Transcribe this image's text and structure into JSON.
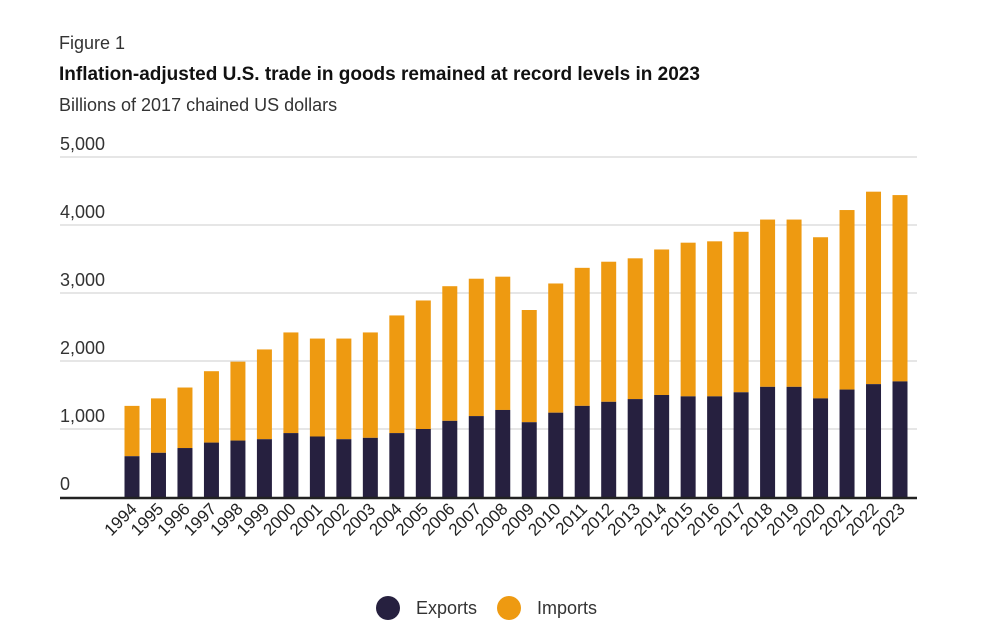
{
  "figure_label": "Figure 1",
  "title": "Inflation-adjusted U.S. trade in goods remained at record levels in 2023",
  "subtitle": "Billions of 2017 chained US dollars",
  "colors": {
    "exports": "#26203f",
    "imports": "#ee9a11",
    "grid": "#cccccc",
    "axis": "#222222"
  },
  "legend": [
    {
      "label": "Exports",
      "color": "#26203f"
    },
    {
      "label": "Imports",
      "color": "#ee9a11"
    }
  ],
  "chart_data": {
    "type": "bar",
    "stacked": true,
    "categories": [
      "1994",
      "1995",
      "1996",
      "1997",
      "1998",
      "1999",
      "2000",
      "2001",
      "2002",
      "2003",
      "2004",
      "2005",
      "2006",
      "2007",
      "2008",
      "2009",
      "2010",
      "2011",
      "2012",
      "2013",
      "2014",
      "2015",
      "2016",
      "2017",
      "2018",
      "2019",
      "2020",
      "2021",
      "2022",
      "2023"
    ],
    "series": [
      {
        "name": "Exports",
        "values": [
          600,
          650,
          720,
          800,
          830,
          850,
          940,
          890,
          850,
          870,
          940,
          1000,
          1120,
          1190,
          1280,
          1100,
          1240,
          1340,
          1400,
          1440,
          1500,
          1480,
          1480,
          1540,
          1620,
          1620,
          1450,
          1580,
          1660,
          1700
        ]
      },
      {
        "name": "Imports",
        "values": [
          740,
          800,
          890,
          1050,
          1160,
          1320,
          1480,
          1440,
          1480,
          1550,
          1730,
          1890,
          1980,
          2020,
          1960,
          1650,
          1900,
          2030,
          2060,
          2070,
          2140,
          2260,
          2280,
          2360,
          2460,
          2460,
          2370,
          2640,
          2830,
          2740
        ]
      }
    ],
    "y_ticks": [
      "5,000",
      "4,000",
      "3,000",
      "2,000",
      "1,000",
      "0"
    ],
    "ylim": [
      0,
      5000
    ],
    "grid": true,
    "legend_position": "bottom-center"
  }
}
